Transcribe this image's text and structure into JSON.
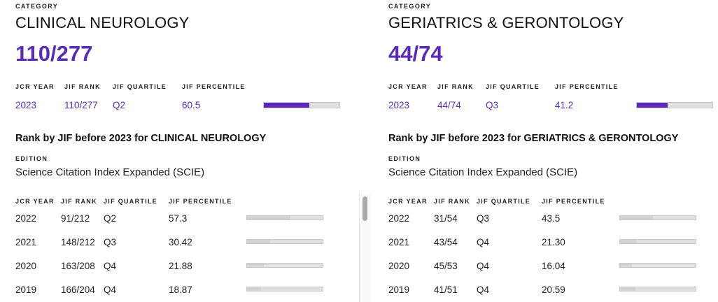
{
  "colors": {
    "accent": "#5b2bb5",
    "bar_track": "#e0e0e0",
    "bar_history": "#d3d3d3"
  },
  "headers": {
    "category": "CATEGORY",
    "jcr_year": "JCR YEAR",
    "jif_rank": "JIF RANK",
    "jif_quartile": "JIF QUARTILE",
    "jif_percentile": "JIF PERCENTILE",
    "edition": "EDITION"
  },
  "panels": [
    {
      "category_name": "CLINICAL NEUROLOGY",
      "category_rank": "110/277",
      "current": {
        "year": "2023",
        "rank": "110/277",
        "quartile": "Q2",
        "percentile": "60.5",
        "percentile_value": 60.5
      },
      "history_title": "Rank by JIF before 2023 for CLINICAL NEUROLOGY",
      "edition_value": "Science Citation Index Expanded (SCIE)",
      "history": [
        {
          "year": "2022",
          "rank": "91/212",
          "quartile": "Q2",
          "percentile": "57.3",
          "percentile_value": 57.3
        },
        {
          "year": "2021",
          "rank": "148/212",
          "quartile": "Q3",
          "percentile": "30.42",
          "percentile_value": 30.42
        },
        {
          "year": "2020",
          "rank": "163/208",
          "quartile": "Q4",
          "percentile": "21.88",
          "percentile_value": 21.88
        },
        {
          "year": "2019",
          "rank": "166/204",
          "quartile": "Q4",
          "percentile": "18.87",
          "percentile_value": 18.87
        }
      ]
    },
    {
      "category_name": "GERIATRICS & GERONTOLOGY",
      "category_rank": "44/74",
      "current": {
        "year": "2023",
        "rank": "44/74",
        "quartile": "Q3",
        "percentile": "41.2",
        "percentile_value": 41.2
      },
      "history_title": "Rank by JIF before 2023 for GERIATRICS & GERONTOLOGY",
      "edition_value": "Science Citation Index Expanded (SCIE)",
      "history": [
        {
          "year": "2022",
          "rank": "31/54",
          "quartile": "Q3",
          "percentile": "43.5",
          "percentile_value": 43.5
        },
        {
          "year": "2021",
          "rank": "43/54",
          "quartile": "Q4",
          "percentile": "21.30",
          "percentile_value": 21.3
        },
        {
          "year": "2020",
          "rank": "45/53",
          "quartile": "Q4",
          "percentile": "16.04",
          "percentile_value": 16.04
        },
        {
          "year": "2019",
          "rank": "41/51",
          "quartile": "Q4",
          "percentile": "20.59",
          "percentile_value": 20.59
        }
      ]
    }
  ]
}
